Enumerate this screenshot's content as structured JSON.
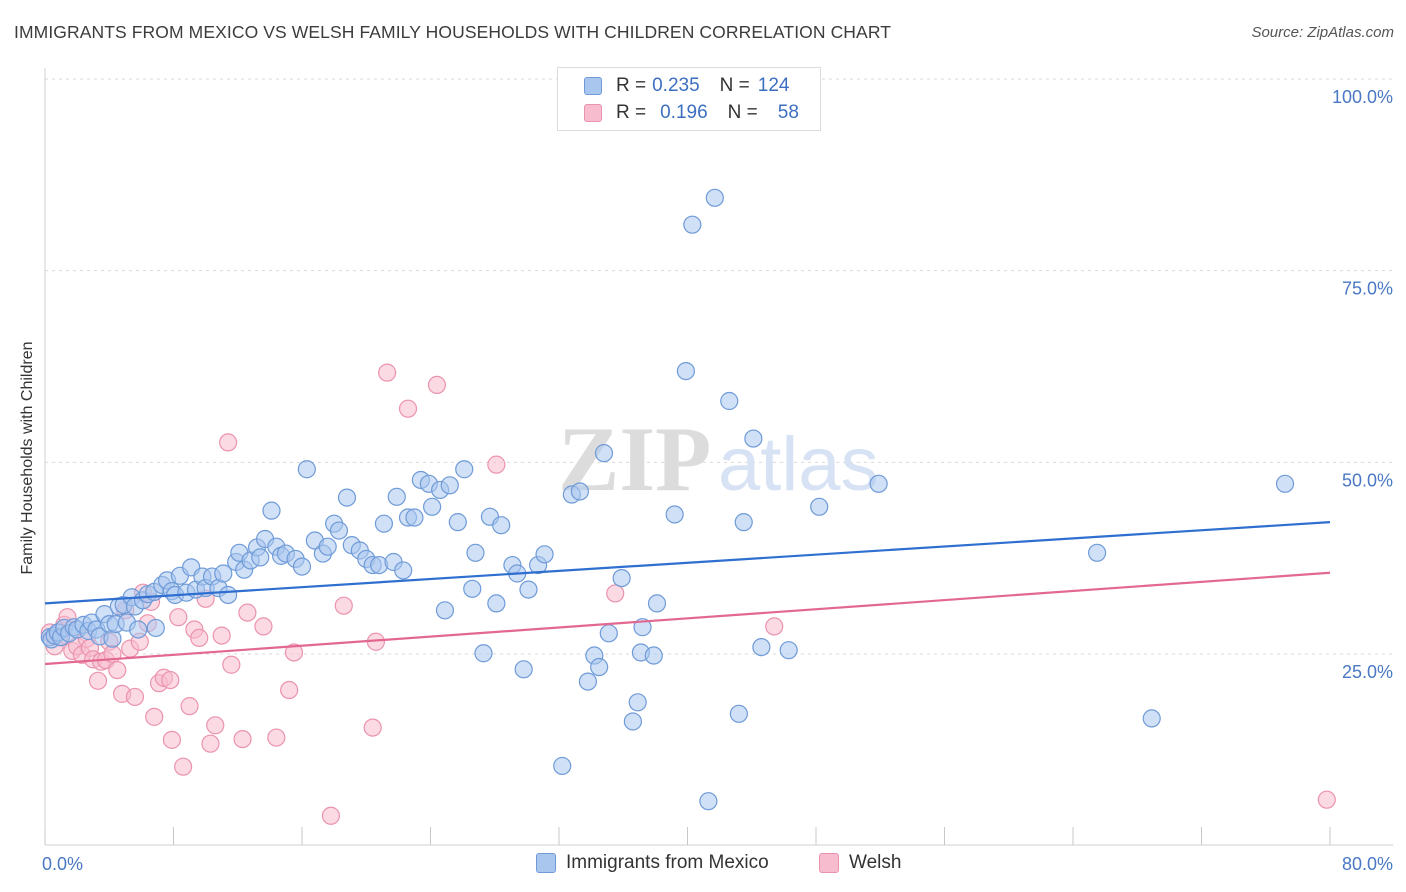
{
  "chart_data": {
    "type": "scatter",
    "title": "IMMIGRANTS FROM MEXICO VS WELSH FAMILY HOUSEHOLDS WITH CHILDREN CORRELATION CHART",
    "source": "Source: ZipAtlas.com",
    "ylabel": "Family Households with Children",
    "xlim": [
      0,
      80
    ],
    "ylim": [
      0,
      100
    ],
    "x_ticks": [
      "0.0%",
      "80.0%"
    ],
    "y_ticks": [
      {
        "value": 25,
        "label": "25.0%"
      },
      {
        "value": 50,
        "label": "50.0%"
      },
      {
        "value": 75,
        "label": "75.0%"
      },
      {
        "value": 100,
        "label": "100.0%"
      }
    ],
    "watermark": "ZIPatlas",
    "colors": {
      "mexico_fill": "#a9c6ef",
      "mexico_stroke": "#6f9bd8",
      "mexico_line": "#2f6fd0",
      "welsh_fill": "#f7bccd",
      "welsh_stroke": "#eb93ad",
      "welsh_line": "#e26892",
      "tick_text": "#4a78c4",
      "grid": "#d9d9d9"
    },
    "legend_top": [
      {
        "r_label": "R =",
        "r_value": "0.235",
        "n_label": "N =",
        "n_value": "124"
      },
      {
        "r_label": "R =",
        "r_value": "0.196",
        "n_label": "N =",
        "n_value": "58"
      }
    ],
    "series": [
      {
        "name": "Immigrants from Mexico",
        "trend": {
          "x0": 0,
          "y0": 31.6,
          "x1": 80,
          "y1": 42.2
        },
        "points": [
          [
            0.3,
            27.2
          ],
          [
            0.4,
            26.9
          ],
          [
            0.6,
            27.4
          ],
          [
            0.8,
            27.8
          ],
          [
            1.0,
            27.2
          ],
          [
            1.2,
            28.4
          ],
          [
            1.5,
            27.7
          ],
          [
            1.8,
            28.5
          ],
          [
            2.0,
            28.2
          ],
          [
            2.4,
            28.8
          ],
          [
            2.7,
            28.0
          ],
          [
            2.9,
            29.1
          ],
          [
            3.2,
            28.2
          ],
          [
            3.4,
            27.3
          ],
          [
            3.7,
            30.2
          ],
          [
            4.0,
            28.9
          ],
          [
            4.2,
            27.0
          ],
          [
            4.4,
            28.9
          ],
          [
            4.6,
            31.2
          ],
          [
            4.9,
            31.4
          ],
          [
            5.1,
            29.1
          ],
          [
            5.4,
            32.4
          ],
          [
            5.6,
            31.2
          ],
          [
            5.8,
            28.2
          ],
          [
            6.1,
            32.0
          ],
          [
            6.4,
            32.8
          ],
          [
            6.8,
            33.1
          ],
          [
            6.9,
            28.4
          ],
          [
            7.3,
            34.0
          ],
          [
            7.6,
            34.6
          ],
          [
            7.9,
            33.2
          ],
          [
            8.1,
            32.7
          ],
          [
            8.4,
            35.2
          ],
          [
            8.8,
            33.0
          ],
          [
            9.1,
            36.3
          ],
          [
            9.4,
            33.4
          ],
          [
            9.8,
            35.1
          ],
          [
            10.0,
            33.6
          ],
          [
            10.4,
            35.1
          ],
          [
            10.8,
            33.6
          ],
          [
            11.1,
            35.5
          ],
          [
            11.4,
            32.7
          ],
          [
            11.9,
            37.0
          ],
          [
            12.1,
            38.2
          ],
          [
            12.4,
            36.0
          ],
          [
            12.8,
            37.2
          ],
          [
            13.2,
            38.9
          ],
          [
            13.4,
            37.6
          ],
          [
            13.7,
            40.0
          ],
          [
            14.1,
            43.7
          ],
          [
            14.4,
            39.0
          ],
          [
            14.7,
            37.8
          ],
          [
            15.0,
            38.1
          ],
          [
            15.6,
            37.4
          ],
          [
            16.0,
            36.4
          ],
          [
            16.3,
            49.1
          ],
          [
            16.8,
            39.8
          ],
          [
            17.3,
            38.1
          ],
          [
            17.6,
            39.0
          ],
          [
            18.0,
            42.0
          ],
          [
            18.3,
            41.1
          ],
          [
            18.8,
            45.4
          ],
          [
            19.1,
            39.2
          ],
          [
            19.6,
            38.5
          ],
          [
            20.0,
            37.4
          ],
          [
            20.4,
            36.6
          ],
          [
            20.8,
            36.6
          ],
          [
            21.1,
            42.0
          ],
          [
            21.7,
            37.0
          ],
          [
            21.9,
            45.5
          ],
          [
            22.3,
            35.9
          ],
          [
            22.6,
            42.8
          ],
          [
            23.0,
            42.8
          ],
          [
            23.4,
            47.7
          ],
          [
            23.9,
            47.2
          ],
          [
            24.1,
            44.2
          ],
          [
            24.6,
            46.4
          ],
          [
            24.9,
            30.7
          ],
          [
            25.2,
            47.0
          ],
          [
            25.7,
            42.2
          ],
          [
            26.1,
            49.1
          ],
          [
            26.6,
            33.5
          ],
          [
            26.8,
            38.2
          ],
          [
            27.3,
            25.1
          ],
          [
            27.7,
            42.9
          ],
          [
            28.1,
            31.6
          ],
          [
            28.4,
            41.8
          ],
          [
            29.1,
            36.6
          ],
          [
            29.4,
            35.5
          ],
          [
            29.8,
            23.0
          ],
          [
            30.1,
            33.4
          ],
          [
            30.7,
            36.6
          ],
          [
            31.1,
            38.0
          ],
          [
            32.2,
            10.4
          ],
          [
            32.8,
            45.8
          ],
          [
            33.3,
            46.2
          ],
          [
            33.8,
            21.4
          ],
          [
            34.2,
            24.8
          ],
          [
            34.5,
            23.3
          ],
          [
            34.8,
            51.2
          ],
          [
            35.1,
            27.7
          ],
          [
            35.9,
            34.9
          ],
          [
            36.6,
            16.2
          ],
          [
            36.9,
            18.7
          ],
          [
            37.2,
            28.5
          ],
          [
            37.1,
            25.2
          ],
          [
            38.1,
            31.6
          ],
          [
            37.9,
            24.8
          ],
          [
            39.2,
            43.2
          ],
          [
            39.9,
            61.9
          ],
          [
            40.3,
            81.0
          ],
          [
            41.7,
            84.5
          ],
          [
            41.3,
            5.8
          ],
          [
            42.6,
            58.0
          ],
          [
            43.2,
            17.2
          ],
          [
            43.5,
            42.2
          ],
          [
            44.1,
            53.1
          ],
          [
            44.6,
            25.9
          ],
          [
            46.3,
            25.5
          ],
          [
            48.2,
            44.2
          ],
          [
            51.9,
            47.2
          ],
          [
            65.5,
            38.2
          ],
          [
            68.9,
            16.6
          ],
          [
            77.2,
            47.2
          ]
        ]
      },
      {
        "name": "Welsh",
        "trend": {
          "x0": 0,
          "y0": 23.7,
          "x1": 80,
          "y1": 35.6
        },
        "points": [
          [
            0.3,
            27.8
          ],
          [
            0.6,
            26.0
          ],
          [
            0.9,
            27.2
          ],
          [
            1.2,
            28.8
          ],
          [
            1.4,
            29.8
          ],
          [
            1.7,
            25.4
          ],
          [
            2.0,
            26.0
          ],
          [
            2.3,
            24.9
          ],
          [
            2.6,
            27.0
          ],
          [
            2.8,
            25.8
          ],
          [
            3.0,
            24.3
          ],
          [
            3.3,
            21.5
          ],
          [
            3.5,
            24.0
          ],
          [
            3.8,
            24.2
          ],
          [
            4.0,
            26.6
          ],
          [
            4.2,
            25.0
          ],
          [
            4.5,
            22.9
          ],
          [
            4.8,
            19.8
          ],
          [
            5.0,
            30.7
          ],
          [
            5.3,
            25.7
          ],
          [
            5.6,
            19.4
          ],
          [
            5.9,
            26.6
          ],
          [
            6.1,
            33.0
          ],
          [
            6.4,
            29.0
          ],
          [
            6.6,
            31.8
          ],
          [
            6.8,
            16.8
          ],
          [
            7.1,
            21.2
          ],
          [
            7.4,
            21.9
          ],
          [
            7.8,
            21.6
          ],
          [
            7.9,
            13.8
          ],
          [
            8.3,
            29.8
          ],
          [
            8.6,
            10.3
          ],
          [
            9.0,
            18.2
          ],
          [
            9.3,
            28.2
          ],
          [
            9.6,
            27.1
          ],
          [
            10.0,
            32.2
          ],
          [
            10.3,
            13.3
          ],
          [
            10.6,
            15.7
          ],
          [
            11.0,
            27.4
          ],
          [
            11.4,
            52.6
          ],
          [
            11.6,
            23.6
          ],
          [
            12.3,
            13.9
          ],
          [
            12.6,
            30.4
          ],
          [
            13.6,
            28.6
          ],
          [
            14.4,
            14.1
          ],
          [
            15.2,
            20.3
          ],
          [
            15.5,
            25.2
          ],
          [
            17.8,
            3.9
          ],
          [
            18.6,
            31.3
          ],
          [
            20.4,
            15.4
          ],
          [
            20.6,
            26.6
          ],
          [
            21.3,
            61.7
          ],
          [
            22.6,
            57.0
          ],
          [
            24.4,
            60.1
          ],
          [
            28.1,
            49.7
          ],
          [
            35.5,
            32.9
          ],
          [
            45.4,
            28.6
          ],
          [
            79.8,
            6.0
          ]
        ]
      }
    ]
  }
}
